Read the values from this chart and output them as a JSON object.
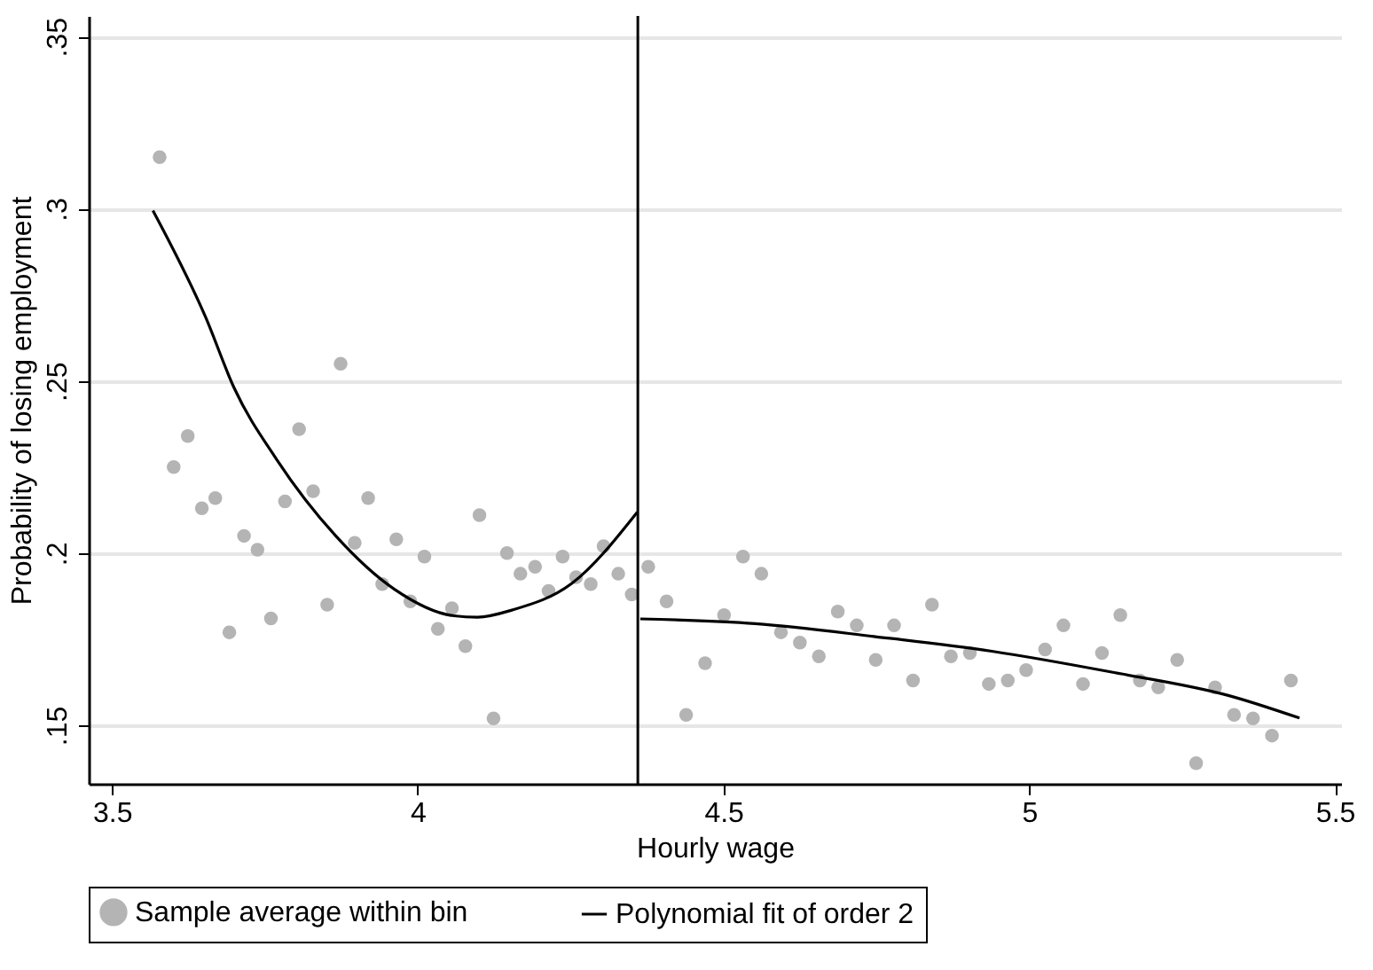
{
  "chart_data": {
    "type": "scatter",
    "xlabel": "Hourly wage",
    "ylabel": "Probability of losing employment",
    "xlim": [
      3.462,
      5.51
    ],
    "ylim": [
      0.133,
      0.356
    ],
    "xticks": [
      3.5,
      4,
      4.5,
      5,
      5.5
    ],
    "yticks": [
      {
        "value": 0.15,
        "label": ".15"
      },
      {
        "value": 0.2,
        "label": ".2"
      },
      {
        "value": 0.25,
        "label": ".25"
      },
      {
        "value": 0.3,
        "label": ".3"
      },
      {
        "value": 0.35,
        "label": ".35"
      }
    ],
    "grid": "y",
    "legend": "bottom",
    "line_style": "solid",
    "ref_lines": [
      {
        "axis": "x",
        "value": 4.36,
        "color": "#000000"
      }
    ],
    "series": [
      {
        "name": "Sample average within bin",
        "marker": "circle",
        "color": "#b4b4b4",
        "x": [
          3.578,
          3.601,
          3.624,
          3.647,
          3.669,
          3.692,
          3.716,
          3.738,
          3.76,
          3.783,
          3.806,
          3.829,
          3.852,
          3.874,
          3.897,
          3.919,
          3.942,
          3.965,
          3.988,
          4.011,
          4.033,
          4.056,
          4.078,
          4.101,
          4.124,
          4.146,
          4.168,
          4.192,
          4.214,
          4.237,
          4.259,
          4.283,
          4.304,
          4.328,
          4.35,
          4.377,
          4.407,
          4.439,
          4.47,
          4.501,
          4.532,
          4.562,
          4.594,
          4.625,
          4.656,
          4.687,
          4.718,
          4.749,
          4.779,
          4.81,
          4.841,
          4.872,
          4.903,
          4.934,
          4.965,
          4.995,
          5.026,
          5.056,
          5.088,
          5.119,
          5.149,
          5.181,
          5.211,
          5.242,
          5.273,
          5.304,
          5.335,
          5.366,
          5.397,
          5.428
        ],
        "values": [
          0.315,
          0.225,
          0.234,
          0.213,
          0.216,
          0.177,
          0.205,
          0.201,
          0.181,
          0.215,
          0.236,
          0.218,
          0.185,
          0.255,
          0.203,
          0.216,
          0.191,
          0.204,
          0.186,
          0.199,
          0.178,
          0.184,
          0.173,
          0.211,
          0.152,
          0.2,
          0.194,
          0.196,
          0.189,
          0.199,
          0.193,
          0.191,
          0.202,
          0.194,
          0.188,
          0.196,
          0.186,
          0.153,
          0.168,
          0.182,
          0.199,
          0.194,
          0.177,
          0.174,
          0.17,
          0.183,
          0.179,
          0.169,
          0.179,
          0.163,
          0.185,
          0.17,
          0.171,
          0.162,
          0.163,
          0.166,
          0.172,
          0.179,
          0.162,
          0.171,
          0.182,
          0.163,
          0.161,
          0.169,
          0.139,
          0.161,
          0.153,
          0.152,
          0.147,
          0.163
        ]
      },
      {
        "name": "Polynomial fit of order 2",
        "type": "line",
        "marker": "none",
        "color": "#000000",
        "x": [
          3.567,
          3.653,
          3.7,
          3.769,
          3.866,
          3.962,
          4.059,
          4.098,
          4.155,
          4.252,
          4.359
        ],
        "values": [
          0.2995,
          0.2686,
          0.2479,
          0.2273,
          0.205,
          0.1895,
          0.1818,
          0.1814,
          0.1835,
          0.1912,
          0.2119
        ]
      },
      {
        "type": "line",
        "marker": "none",
        "color": "#000000",
        "x": [
          4.364,
          4.552,
          4.746,
          4.939,
          5.133,
          5.327,
          5.442
        ],
        "values": [
          0.1809,
          0.1795,
          0.1758,
          0.1715,
          0.1655,
          0.1586,
          0.1521
        ]
      }
    ]
  }
}
